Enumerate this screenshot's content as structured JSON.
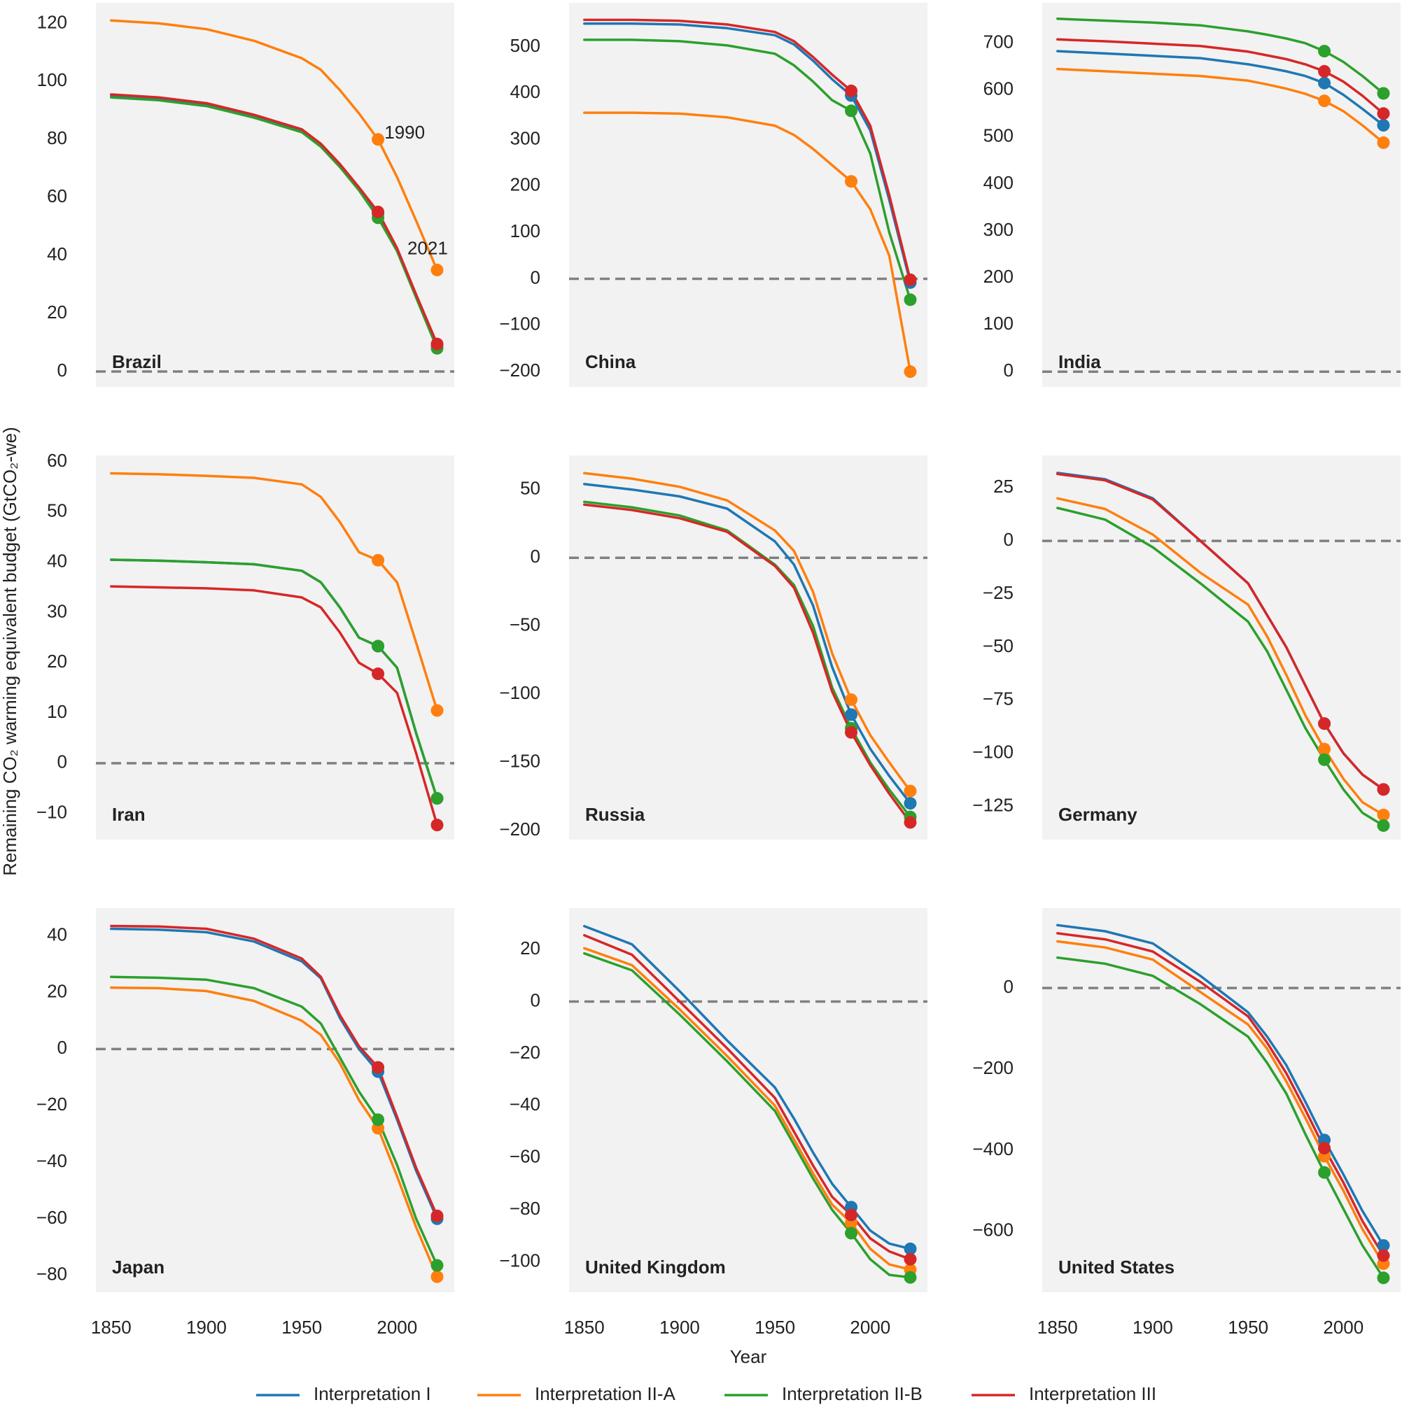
{
  "y_label": "Remaining CO₂ warming equivalent budget (GtCO₂-we)",
  "x_label": "Year",
  "marker_x": [
    1990,
    2021
  ],
  "chart_data": [
    {
      "type": "line",
      "title": "Brazil",
      "x": [
        1850,
        1875,
        1900,
        1925,
        1950,
        1960,
        1970,
        1980,
        1990,
        2000,
        2010,
        2021
      ],
      "xlim": [
        1842,
        2030
      ],
      "ylim": [
        -5.3,
        127.1
      ],
      "yticks": [
        0,
        20,
        40,
        60,
        80,
        100,
        120
      ],
      "zero_line": true,
      "annotations": [
        {
          "text": "1990",
          "x": 2004,
          "y": 82
        },
        {
          "text": "2021",
          "x": 2016,
          "y": 42
        }
      ],
      "series": [
        {
          "name": "Interpretation I",
          "color": "#1f77b4",
          "values": [
            95,
            94,
            92,
            88,
            83,
            78,
            71,
            63,
            54.5,
            42,
            26,
            9
          ]
        },
        {
          "name": "Interpretation II-A",
          "color": "#ff7f0e",
          "values": [
            121,
            120,
            118,
            114,
            108,
            104,
            97,
            89,
            80,
            67,
            52,
            35
          ]
        },
        {
          "name": "Interpretation II-B",
          "color": "#2ca02c",
          "values": [
            94.5,
            93.5,
            91.5,
            87.5,
            82.5,
            77.5,
            70.5,
            62.5,
            53,
            41.5,
            25.5,
            8
          ]
        },
        {
          "name": "Interpretation III",
          "color": "#d62728",
          "values": [
            95.5,
            94.5,
            92.5,
            88.5,
            83.5,
            78.5,
            71.5,
            63.5,
            55,
            42.5,
            26.5,
            9.5
          ]
        }
      ]
    },
    {
      "type": "line",
      "title": "China",
      "x": [
        1850,
        1875,
        1900,
        1925,
        1950,
        1960,
        1970,
        1980,
        1990,
        2000,
        2010,
        2021
      ],
      "xlim": [
        1842,
        2030
      ],
      "ylim": [
        -232.9,
        594.8
      ],
      "yticks": [
        {
          "value": -200,
          "label": "−200"
        },
        {
          "value": -100,
          "label": "−100"
        },
        0,
        100,
        200,
        300,
        400,
        500
      ],
      "zero_line": true,
      "series": [
        {
          "name": "Interpretation I",
          "color": "#1f77b4",
          "values": [
            550,
            550,
            548,
            540,
            525,
            505,
            470,
            430,
            395,
            320,
            170,
            -8
          ]
        },
        {
          "name": "Interpretation II-A",
          "color": "#ff7f0e",
          "values": [
            358,
            358,
            356,
            348,
            330,
            310,
            280,
            245,
            210,
            150,
            50,
            -200
          ]
        },
        {
          "name": "Interpretation II-B",
          "color": "#2ca02c",
          "values": [
            515,
            515,
            512,
            503,
            485,
            460,
            425,
            385,
            362,
            270,
            100,
            -45
          ]
        },
        {
          "name": "Interpretation III",
          "color": "#d62728",
          "values": [
            558,
            558,
            556,
            548,
            532,
            512,
            478,
            440,
            405,
            330,
            180,
            -2
          ]
        }
      ]
    },
    {
      "type": "line",
      "title": "India",
      "x": [
        1850,
        1875,
        1900,
        1925,
        1950,
        1960,
        1970,
        1980,
        1990,
        2000,
        2010,
        2021
      ],
      "xlim": [
        1842,
        2030
      ],
      "ylim": [
        -32.5,
        786
      ],
      "yticks": [
        0,
        100,
        200,
        300,
        400,
        500,
        600,
        700
      ],
      "zero_line": true,
      "series": [
        {
          "name": "Interpretation I",
          "color": "#1f77b4",
          "values": [
            683,
            678,
            673,
            668,
            655,
            648,
            640,
            630,
            615,
            590,
            560,
            525
          ]
        },
        {
          "name": "Interpretation II-A",
          "color": "#ff7f0e",
          "values": [
            645,
            640,
            635,
            630,
            620,
            612,
            603,
            592,
            577,
            555,
            525,
            488
          ]
        },
        {
          "name": "Interpretation II-B",
          "color": "#2ca02c",
          "values": [
            752,
            748,
            744,
            738,
            725,
            718,
            710,
            700,
            683,
            660,
            630,
            593
          ]
        },
        {
          "name": "Interpretation III",
          "color": "#d62728",
          "values": [
            708,
            704,
            699,
            694,
            682,
            674,
            666,
            655,
            640,
            618,
            588,
            550
          ]
        }
      ]
    },
    {
      "type": "line",
      "title": "Iran",
      "x": [
        1850,
        1875,
        1900,
        1925,
        1950,
        1960,
        1970,
        1980,
        1990,
        2000,
        2010,
        2021
      ],
      "xlim": [
        1842,
        2030
      ],
      "ylim": [
        -15.2,
        61.25
      ],
      "yticks": [
        {
          "value": -10,
          "label": "−10"
        },
        0,
        10,
        20,
        30,
        40,
        50,
        60
      ],
      "zero_line": true,
      "series": [
        {
          "name": "Interpretation I",
          "color": "#1f77b4",
          "values": [
            40.5,
            40.3,
            40,
            39.6,
            38.3,
            36,
            31,
            25,
            23.3,
            19,
            6,
            -7
          ]
        },
        {
          "name": "Interpretation II-A",
          "color": "#ff7f0e",
          "values": [
            57.7,
            57.5,
            57.2,
            56.8,
            55.5,
            53,
            48,
            42,
            40.4,
            36,
            24,
            10.5
          ]
        },
        {
          "name": "Interpretation II-B",
          "color": "#2ca02c",
          "values": [
            40.5,
            40.3,
            40,
            39.6,
            38.3,
            36,
            31,
            25,
            23.3,
            19,
            6,
            -7
          ]
        },
        {
          "name": "Interpretation III",
          "color": "#d62728",
          "values": [
            35.2,
            35,
            34.8,
            34.4,
            33,
            31,
            26,
            20,
            17.8,
            14,
            2,
            -12.3
          ]
        }
      ]
    },
    {
      "type": "line",
      "title": "Russia",
      "x": [
        1850,
        1875,
        1900,
        1925,
        1950,
        1960,
        1970,
        1980,
        1990,
        2000,
        2010,
        2021
      ],
      "xlim": [
        1842,
        2030
      ],
      "ylim": [
        -206.6,
        75
      ],
      "yticks": [
        {
          "value": -200,
          "label": "−200"
        },
        {
          "value": -150,
          "label": "−150"
        },
        {
          "value": -100,
          "label": "−100"
        },
        {
          "value": -50,
          "label": "−50"
        },
        0,
        50
      ],
      "zero_line": true,
      "series": [
        {
          "name": "Interpretation I",
          "color": "#1f77b4",
          "values": [
            54,
            50,
            45,
            36,
            12,
            -5,
            -35,
            -80,
            -115,
            -140,
            -160,
            -180
          ]
        },
        {
          "name": "Interpretation II-A",
          "color": "#ff7f0e",
          "values": [
            62,
            58,
            52,
            42,
            20,
            5,
            -25,
            -70,
            -104,
            -130,
            -150,
            -171
          ]
        },
        {
          "name": "Interpretation II-B",
          "color": "#2ca02c",
          "values": [
            41,
            37,
            31,
            20,
            -5,
            -20,
            -50,
            -95,
            -125,
            -150,
            -170,
            -190
          ]
        },
        {
          "name": "Interpretation III",
          "color": "#d62728",
          "values": [
            39,
            35,
            29,
            19,
            -6,
            -22,
            -55,
            -98,
            -128,
            -152,
            -173,
            -194
          ]
        }
      ]
    },
    {
      "type": "line",
      "title": "Germany",
      "x": [
        1850,
        1875,
        1900,
        1925,
        1950,
        1960,
        1970,
        1980,
        1990,
        2000,
        2010,
        2021
      ],
      "xlim": [
        1842,
        2030
      ],
      "ylim": [
        -140.6,
        40.2
      ],
      "yticks": [
        {
          "value": -125,
          "label": "−125"
        },
        {
          "value": -100,
          "label": "−100"
        },
        {
          "value": -75,
          "label": "−75"
        },
        {
          "value": -50,
          "label": "−50"
        },
        {
          "value": -25,
          "label": "−25"
        },
        0,
        25
      ],
      "zero_line": true,
      "series": [
        {
          "name": "Interpretation I",
          "color": "#1f77b4",
          "values": [
            32,
            29,
            20,
            0,
            -20,
            -35,
            -50,
            -68,
            -86,
            -100,
            -110,
            -117
          ]
        },
        {
          "name": "Interpretation II-A",
          "color": "#ff7f0e",
          "values": [
            20,
            15,
            3,
            -15,
            -30,
            -45,
            -63,
            -82,
            -98,
            -112,
            -123,
            -129
          ]
        },
        {
          "name": "Interpretation II-B",
          "color": "#2ca02c",
          "values": [
            15.5,
            10,
            -3,
            -20,
            -38,
            -52,
            -70,
            -88,
            -103,
            -117,
            -128,
            -134
          ]
        },
        {
          "name": "Interpretation III",
          "color": "#d62728",
          "values": [
            31.5,
            28.5,
            19.5,
            0,
            -20,
            -35,
            -50,
            -68,
            -86,
            -100,
            -110,
            -117
          ]
        }
      ]
    },
    {
      "type": "line",
      "title": "Japan",
      "x": [
        1850,
        1875,
        1900,
        1925,
        1950,
        1960,
        1970,
        1980,
        1990,
        2000,
        2010,
        2021
      ],
      "xlim": [
        1842,
        2030
      ],
      "xticks": [
        1850,
        1900,
        1950,
        2000
      ],
      "ylim": [
        -86,
        49.8
      ],
      "yticks": [
        {
          "value": -80,
          "label": "−80"
        },
        {
          "value": -60,
          "label": "−60"
        },
        {
          "value": -40,
          "label": "−40"
        },
        {
          "value": -20,
          "label": "−20"
        },
        0,
        20,
        40
      ],
      "zero_line": true,
      "series": [
        {
          "name": "Interpretation I",
          "color": "#1f77b4",
          "values": [
            42.5,
            42.2,
            41.3,
            38,
            31,
            25,
            11,
            0,
            -8,
            -25,
            -43,
            -60
          ]
        },
        {
          "name": "Interpretation II-A",
          "color": "#ff7f0e",
          "values": [
            21.7,
            21.5,
            20.5,
            17,
            10,
            5,
            -5,
            -18,
            -28,
            -45,
            -63,
            -80.5
          ]
        },
        {
          "name": "Interpretation II-B",
          "color": "#2ca02c",
          "values": [
            25.5,
            25.2,
            24.5,
            21.5,
            15,
            9,
            -3,
            -15,
            -25,
            -41,
            -60,
            -76.5
          ]
        },
        {
          "name": "Interpretation III",
          "color": "#d62728",
          "values": [
            43.5,
            43.3,
            42.5,
            39,
            32,
            25.5,
            12,
            1,
            -6.5,
            -24,
            -42,
            -59
          ]
        }
      ]
    },
    {
      "type": "line",
      "title": "United Kingdom",
      "x": [
        1850,
        1875,
        1900,
        1925,
        1950,
        1960,
        1970,
        1980,
        1990,
        2000,
        2010,
        2021
      ],
      "xlim": [
        1842,
        2030
      ],
      "xticks": [
        1850,
        1900,
        1950,
        2000
      ],
      "ylim": [
        -111.7,
        35.9
      ],
      "yticks": [
        {
          "value": -100,
          "label": "−100"
        },
        {
          "value": -80,
          "label": "−80"
        },
        {
          "value": -60,
          "label": "−60"
        },
        {
          "value": -40,
          "label": "−40"
        },
        {
          "value": -20,
          "label": "−20"
        },
        0,
        20
      ],
      "zero_line": true,
      "series": [
        {
          "name": "Interpretation I",
          "color": "#1f77b4",
          "values": [
            29,
            22,
            4,
            -15,
            -33,
            -45,
            -58,
            -70,
            -79,
            -88,
            -93,
            -95
          ]
        },
        {
          "name": "Interpretation II-A",
          "color": "#ff7f0e",
          "values": [
            20.5,
            14,
            -3,
            -21,
            -40,
            -53,
            -66,
            -78,
            -85,
            -95,
            -101,
            -103
          ]
        },
        {
          "name": "Interpretation II-B",
          "color": "#2ca02c",
          "values": [
            18.5,
            12,
            -5,
            -23,
            -42,
            -55,
            -68,
            -80,
            -89,
            -99,
            -105,
            -106
          ]
        },
        {
          "name": "Interpretation III",
          "color": "#d62728",
          "values": [
            25.5,
            18,
            0,
            -18,
            -37,
            -50,
            -63,
            -75,
            -82,
            -91,
            -96,
            -99
          ]
        }
      ]
    },
    {
      "type": "line",
      "title": "United States",
      "x": [
        1850,
        1875,
        1900,
        1925,
        1950,
        1960,
        1970,
        1980,
        1990,
        2000,
        2010,
        2021
      ],
      "xlim": [
        1842,
        2030
      ],
      "xticks": [
        1850,
        1900,
        1950,
        2000
      ],
      "ylim": [
        -750.5,
        197
      ],
      "yticks": [
        {
          "value": -600,
          "label": "−600"
        },
        {
          "value": -400,
          "label": "−400"
        },
        {
          "value": -200,
          "label": "−200"
        },
        0
      ],
      "zero_line": true,
      "series": [
        {
          "name": "Interpretation I",
          "color": "#1f77b4",
          "values": [
            155,
            140,
            110,
            30,
            -60,
            -120,
            -190,
            -280,
            -375,
            -460,
            -550,
            -635
          ]
        },
        {
          "name": "Interpretation II-A",
          "color": "#ff7f0e",
          "values": [
            115,
            100,
            70,
            -10,
            -90,
            -150,
            -230,
            -320,
            -415,
            -500,
            -595,
            -680
          ]
        },
        {
          "name": "Interpretation II-B",
          "color": "#2ca02c",
          "values": [
            75,
            60,
            30,
            -40,
            -120,
            -185,
            -260,
            -360,
            -455,
            -545,
            -635,
            -715
          ]
        },
        {
          "name": "Interpretation III",
          "color": "#d62728",
          "values": [
            135,
            120,
            90,
            15,
            -70,
            -135,
            -210,
            -300,
            -395,
            -480,
            -575,
            -660
          ]
        }
      ]
    }
  ]
}
